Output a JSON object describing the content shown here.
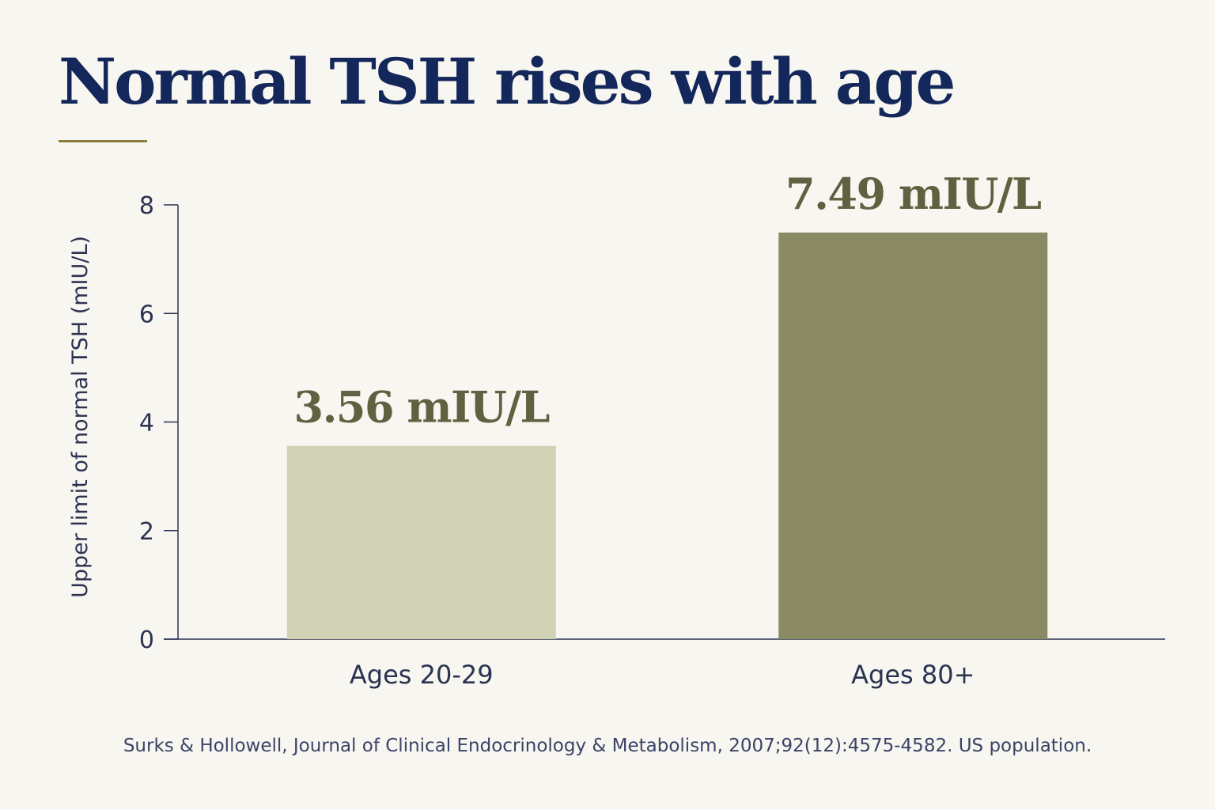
{
  "colors": {
    "background": "#f8f6f1",
    "title": "#13275a",
    "accent_rule": "#8a7d3a",
    "axis": "#2a3350",
    "value_label": "#5f6140"
  },
  "title": "Normal TSH rises with age",
  "source": "Surks & Hollowell, Journal of Clinical Endocrinology & Metabolism, 2007;92(12):4575-4582. US population.",
  "chart_data": {
    "type": "bar",
    "title": "Normal TSH rises with age",
    "xlabel": "",
    "ylabel": "Upper limit of normal TSH (mIU/L)",
    "categories": [
      "Ages 20-29",
      "Ages 80+"
    ],
    "values": [
      3.56,
      7.49
    ],
    "value_labels": [
      "3.56 mIU/L",
      "7.49 mIU/L"
    ],
    "bar_colors": [
      "#d1d1b6",
      "#8a8a64"
    ],
    "ylim": [
      0,
      8
    ],
    "yticks": [
      0,
      2,
      4,
      6,
      8
    ],
    "grid": false,
    "legend": "none"
  }
}
